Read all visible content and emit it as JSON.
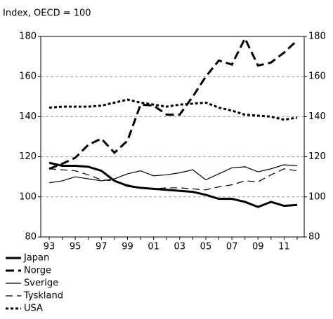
{
  "chart_data": {
    "type": "line",
    "subtitle": "Index, OECD = 100",
    "categories": [
      "93",
      null,
      "95",
      null,
      "97",
      null,
      "99",
      null,
      "01",
      null,
      "03",
      null,
      "05",
      null,
      "07",
      null,
      "09",
      null,
      "11",
      null
    ],
    "ylim": [
      80,
      180
    ],
    "yticks": [
      80,
      100,
      120,
      140,
      160,
      180
    ],
    "grid": true,
    "series": [
      {
        "name": "Japan",
        "color": "#000000",
        "width": 3,
        "dash": "none",
        "values": [
          117,
          115.5,
          115.5,
          115,
          113,
          108,
          105.5,
          104.5,
          104,
          103.5,
          103,
          102.5,
          101,
          99,
          99,
          97.5,
          95,
          97.5,
          95.5,
          96
        ]
      },
      {
        "name": "Norge",
        "color": "#000000",
        "width": 3,
        "dash": "12 6",
        "values": [
          114,
          116.5,
          119.5,
          126,
          129,
          122,
          128,
          146,
          145.5,
          141,
          141,
          150,
          160,
          168,
          166,
          179,
          165.5,
          167,
          172,
          178
        ]
      },
      {
        "name": "Sverige",
        "color": "#000000",
        "width": 1.2,
        "dash": "none",
        "values": [
          107,
          108,
          110,
          109,
          108,
          109,
          111.5,
          113,
          110.5,
          111,
          112,
          113.5,
          108.5,
          111.5,
          114.5,
          115,
          112.5,
          114,
          116,
          115.5
        ]
      },
      {
        "name": "Tyskland",
        "color": "#000000",
        "width": 1.2,
        "dash": "10 6",
        "values": [
          114,
          113.5,
          113,
          111,
          108.5,
          108,
          106,
          104.5,
          104,
          104.5,
          104.5,
          104,
          103.5,
          105,
          106,
          108,
          107.5,
          111,
          114,
          113
        ]
      },
      {
        "name": "USA",
        "color": "#000000",
        "width": 3,
        "dash": "4 3",
        "values": [
          144.5,
          145,
          145,
          145,
          145.5,
          147,
          148.5,
          147,
          146,
          145,
          146,
          146.5,
          147,
          144.5,
          143,
          141,
          140.5,
          140,
          138.5,
          139.5
        ]
      }
    ]
  }
}
